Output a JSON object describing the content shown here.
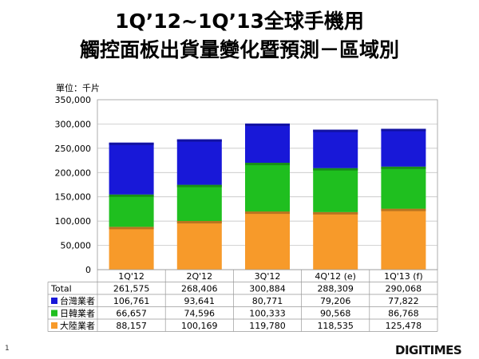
{
  "title_line1": "1Q’12~1Q’13全球手機用",
  "title_line2": "觸控面板出貨量變化暨預測－區域別",
  "unit_label": "單位：千片",
  "slide_number": "1",
  "logo_text": "DIGITIMES",
  "chart_data": {
    "type": "bar",
    "stacked": true,
    "categories": [
      "1Q'12",
      "2Q'12",
      "3Q'12",
      "4Q'12 (e)",
      "1Q'13 (f)"
    ],
    "ylim": [
      0,
      350000
    ],
    "yticks": [
      "0",
      "50,000",
      "100,000",
      "150,000",
      "200,000",
      "250,000",
      "300,000",
      "350,000"
    ],
    "total_label": "Total",
    "totals": [
      "261,575",
      "268,406",
      "300,884",
      "288,309",
      "290,068"
    ],
    "series": [
      {
        "name": "大陸業者",
        "color": "#f79a2a",
        "values": [
          88157,
          100169,
          119780,
          118535,
          125478
        ],
        "labels": [
          "88,157",
          "100,169",
          "119,780",
          "118,535",
          "125,478"
        ]
      },
      {
        "name": "日韓業者",
        "color": "#1fbf1f",
        "values": [
          66657,
          74596,
          100333,
          90568,
          86768
        ],
        "labels": [
          "66,657",
          "74,596",
          "100,333",
          "90,568",
          "86,768"
        ]
      },
      {
        "name": "台灣業者",
        "color": "#1818d8",
        "values": [
          106761,
          93641,
          80771,
          79206,
          77822
        ],
        "labels": [
          "106,761",
          "93,641",
          "80,771",
          "79,206",
          "77,822"
        ]
      }
    ],
    "table_order": [
      2,
      1,
      0
    ],
    "grid": true
  }
}
